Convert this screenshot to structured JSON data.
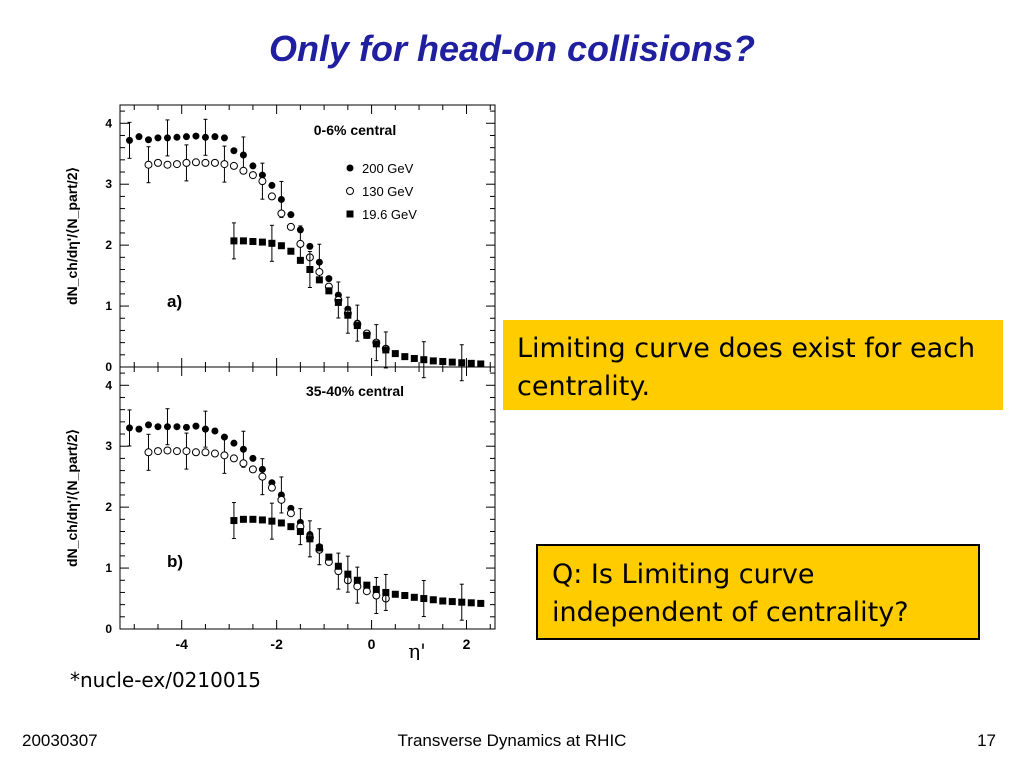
{
  "slide": {
    "title": "Only for head-on collisions?",
    "callout1": "Limiting curve does exist for each centrality.",
    "callout2": "Q: Is Limiting curve independent of centrality?",
    "footnote": "*nucle-ex/0210015",
    "footer_left": "20030307",
    "footer_center": "Transverse Dynamics at RHIC",
    "footer_right": "17"
  },
  "chart_data": [
    {
      "type": "scatter",
      "panel_label": "a)",
      "title": "0-6% central",
      "ylabel": "dN_ch/dη'/⟨N_part/2⟩",
      "xlabel": "η'",
      "xlim": [
        -5.3,
        2.6
      ],
      "ylim": [
        0,
        4.3
      ],
      "xticks": [
        -4,
        -2,
        0,
        2
      ],
      "yticks": [
        0,
        1,
        2,
        3,
        4
      ],
      "legend_position": "top-right",
      "series": [
        {
          "name": "200  GeV",
          "marker": "filled-circle",
          "x": [
            -5.1,
            -4.9,
            -4.7,
            -4.5,
            -4.3,
            -4.1,
            -3.9,
            -3.7,
            -3.5,
            -3.3,
            -3.1,
            -2.9,
            -2.7,
            -2.5,
            -2.3,
            -2.1,
            -1.9,
            -1.7,
            -1.5,
            -1.3,
            -1.1,
            -0.9,
            -0.7,
            -0.5,
            -0.3,
            -0.1
          ],
          "y": [
            3.72,
            3.78,
            3.73,
            3.76,
            3.76,
            3.77,
            3.78,
            3.79,
            3.77,
            3.78,
            3.76,
            3.55,
            3.48,
            3.3,
            3.15,
            2.98,
            2.75,
            2.5,
            2.25,
            1.98,
            1.72,
            1.45,
            1.18,
            0.95,
            0.72,
            0.52
          ]
        },
        {
          "name": "130  GeV",
          "marker": "open-circle",
          "x": [
            -4.7,
            -4.5,
            -4.3,
            -4.1,
            -3.9,
            -3.7,
            -3.5,
            -3.3,
            -3.1,
            -2.9,
            -2.7,
            -2.5,
            -2.3,
            -2.1,
            -1.9,
            -1.7,
            -1.5,
            -1.3,
            -1.1,
            -0.9,
            -0.7,
            -0.5,
            -0.3,
            -0.1,
            0.1,
            0.3
          ],
          "y": [
            3.32,
            3.35,
            3.32,
            3.33,
            3.35,
            3.36,
            3.35,
            3.35,
            3.33,
            3.3,
            3.22,
            3.15,
            3.05,
            2.8,
            2.52,
            2.3,
            2.02,
            1.8,
            1.56,
            1.32,
            1.1,
            0.88,
            0.7,
            0.55,
            0.4,
            0.3
          ]
        },
        {
          "name": "19.6 GeV",
          "marker": "filled-square",
          "x": [
            -2.9,
            -2.7,
            -2.5,
            -2.3,
            -2.1,
            -1.9,
            -1.7,
            -1.5,
            -1.3,
            -1.1,
            -0.9,
            -0.7,
            -0.5,
            -0.3,
            -0.1,
            0.1,
            0.3,
            0.5,
            0.7,
            0.9,
            1.1,
            1.3,
            1.5,
            1.7,
            1.9,
            2.1,
            2.3
          ],
          "y": [
            2.07,
            2.07,
            2.06,
            2.05,
            2.03,
            1.99,
            1.9,
            1.75,
            1.6,
            1.43,
            1.25,
            1.06,
            0.85,
            0.68,
            0.52,
            0.38,
            0.28,
            0.22,
            0.17,
            0.14,
            0.12,
            0.1,
            0.09,
            0.08,
            0.07,
            0.06,
            0.05
          ]
        }
      ]
    },
    {
      "type": "scatter",
      "panel_label": "b)",
      "title": "35-40% central",
      "ylabel": "dN_ch/dη'/⟨N_part/2⟩",
      "xlabel": "η'",
      "xlim": [
        -5.3,
        2.6
      ],
      "ylim": [
        0,
        4.3
      ],
      "xticks": [
        -4,
        -2,
        0,
        2
      ],
      "xticklabels": [
        "-4",
        "-2",
        "0",
        "2"
      ],
      "yticks": [
        0,
        1,
        2,
        3,
        4
      ],
      "series": [
        {
          "name": "200  GeV",
          "marker": "filled-circle",
          "x": [
            -5.1,
            -4.9,
            -4.7,
            -4.5,
            -4.3,
            -4.1,
            -3.9,
            -3.7,
            -3.5,
            -3.3,
            -3.1,
            -2.9,
            -2.7,
            -2.5,
            -2.3,
            -2.1,
            -1.9,
            -1.7,
            -1.5,
            -1.3,
            -1.1,
            -0.9,
            -0.7,
            -0.5,
            -0.3,
            -0.1
          ],
          "y": [
            3.3,
            3.28,
            3.35,
            3.32,
            3.32,
            3.32,
            3.31,
            3.33,
            3.28,
            3.25,
            3.15,
            3.05,
            2.95,
            2.8,
            2.62,
            2.4,
            2.2,
            1.98,
            1.75,
            1.55,
            1.35,
            1.15,
            0.98,
            0.85,
            0.72,
            0.62
          ]
        },
        {
          "name": "130  GeV",
          "marker": "open-circle",
          "x": [
            -4.7,
            -4.5,
            -4.3,
            -4.1,
            -3.9,
            -3.7,
            -3.5,
            -3.3,
            -3.1,
            -2.9,
            -2.7,
            -2.5,
            -2.3,
            -2.1,
            -1.9,
            -1.7,
            -1.5,
            -1.3,
            -1.1,
            -0.9,
            -0.7,
            -0.5,
            -0.3,
            -0.1,
            0.1,
            0.3
          ],
          "y": [
            2.9,
            2.92,
            2.93,
            2.92,
            2.92,
            2.9,
            2.9,
            2.88,
            2.85,
            2.8,
            2.72,
            2.62,
            2.5,
            2.32,
            2.12,
            1.9,
            1.68,
            1.5,
            1.3,
            1.1,
            0.95,
            0.8,
            0.7,
            0.62,
            0.55,
            0.5
          ]
        },
        {
          "name": "19.6 GeV",
          "marker": "filled-square",
          "x": [
            -2.9,
            -2.7,
            -2.5,
            -2.3,
            -2.1,
            -1.9,
            -1.7,
            -1.5,
            -1.3,
            -1.1,
            -0.9,
            -0.7,
            -0.5,
            -0.3,
            -0.1,
            0.1,
            0.3,
            0.5,
            0.7,
            0.9,
            1.1,
            1.3,
            1.5,
            1.7,
            1.9,
            2.1,
            2.3
          ],
          "y": [
            1.78,
            1.8,
            1.8,
            1.79,
            1.77,
            1.74,
            1.68,
            1.6,
            1.48,
            1.33,
            1.18,
            1.03,
            0.9,
            0.8,
            0.72,
            0.65,
            0.6,
            0.57,
            0.55,
            0.52,
            0.5,
            0.48,
            0.46,
            0.45,
            0.44,
            0.43,
            0.42
          ]
        }
      ]
    }
  ]
}
